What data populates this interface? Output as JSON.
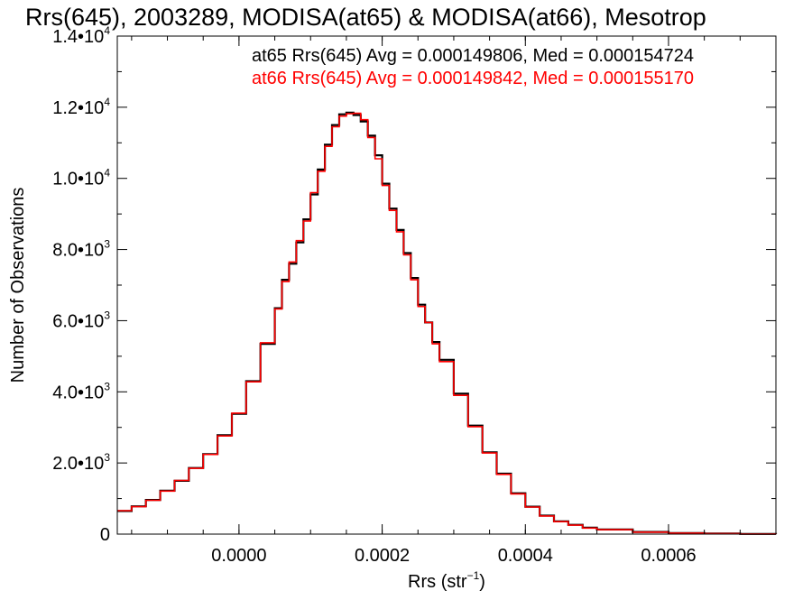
{
  "chart_data": {
    "type": "line",
    "title": "Rrs(645), 2003289, MODISA(at65) & MODISA(at66), Mesotrop",
    "xlabel": "Rrs (str",
    "xlabel_sup": "−1",
    "xlabel_close": ")",
    "ylabel": "Number of Observations",
    "xlim": [
      -0.00017,
      0.00075
    ],
    "ylim": [
      0,
      14000
    ],
    "x_ticks": [
      {
        "value": 0.0,
        "label": "0.0000"
      },
      {
        "value": 0.0002,
        "label": "0.0002"
      },
      {
        "value": 0.0004,
        "label": "0.0004"
      },
      {
        "value": 0.0006,
        "label": "0.0006"
      }
    ],
    "y_ticks": [
      {
        "value": 0,
        "mant": "0",
        "exp": ""
      },
      {
        "value": 2000,
        "mant": "2.0•10",
        "exp": "3"
      },
      {
        "value": 4000,
        "mant": "4.0•10",
        "exp": "3"
      },
      {
        "value": 6000,
        "mant": "6.0•10",
        "exp": "3"
      },
      {
        "value": 8000,
        "mant": "8.0•10",
        "exp": "3"
      },
      {
        "value": 10000,
        "mant": "1.0•10",
        "exp": "4"
      },
      {
        "value": 12000,
        "mant": "1.2•10",
        "exp": "4"
      },
      {
        "value": 14000,
        "mant": "1.4•10",
        "exp": "4"
      }
    ],
    "annotations": [
      {
        "text": "at65 Rrs(645) Avg = 0.000149806, Med = 0.000154724",
        "color": "#000000"
      },
      {
        "text": "at66 Rrs(645) Avg = 0.000149842, Med = 0.000155170",
        "color": "#ff0000"
      }
    ],
    "grid": false,
    "legend": "top-right",
    "series": [
      {
        "color": "#000000",
        "x": [
          -0.00017,
          -0.00015,
          -0.00013,
          -0.00011,
          -9e-05,
          -7e-05,
          -5e-05,
          -3e-05,
          -1e-05,
          1e-05,
          3e-05,
          5e-05,
          6e-05,
          7e-05,
          8e-05,
          9e-05,
          0.0001,
          0.00011,
          0.00012,
          0.00013,
          0.00014,
          0.00015,
          0.00016,
          0.00017,
          0.00018,
          0.00019,
          0.0002,
          0.00021,
          0.00022,
          0.00023,
          0.00024,
          0.00025,
          0.00026,
          0.00027,
          0.00028,
          0.0003,
          0.00032,
          0.00034,
          0.00036,
          0.00038,
          0.0004,
          0.00042,
          0.00044,
          0.00046,
          0.00048,
          0.0005,
          0.00055,
          0.0006,
          0.00065,
          0.0007,
          0.00075
        ],
        "y": [
          650,
          780,
          960,
          1220,
          1500,
          1860,
          2250,
          2780,
          3380,
          4300,
          5350,
          6350,
          7150,
          7600,
          8200,
          8850,
          9550,
          10250,
          10950,
          11500,
          11800,
          11850,
          11780,
          11600,
          11200,
          10650,
          9850,
          9150,
          8550,
          7900,
          7200,
          6450,
          5950,
          5400,
          4900,
          3950,
          3050,
          2300,
          1700,
          1150,
          770,
          520,
          360,
          260,
          180,
          130,
          60,
          30,
          15,
          6,
          2
        ]
      },
      {
        "color": "#ff0000",
        "x": [
          -0.00017,
          -0.00015,
          -0.00013,
          -0.00011,
          -9e-05,
          -7e-05,
          -5e-05,
          -3e-05,
          -1e-05,
          1e-05,
          3e-05,
          5e-05,
          6e-05,
          7e-05,
          8e-05,
          9e-05,
          0.0001,
          0.00011,
          0.00012,
          0.00013,
          0.00014,
          0.00015,
          0.00016,
          0.00017,
          0.00018,
          0.00019,
          0.0002,
          0.00021,
          0.00022,
          0.00023,
          0.00024,
          0.00025,
          0.00026,
          0.00027,
          0.00028,
          0.0003,
          0.00032,
          0.00034,
          0.00036,
          0.00038,
          0.0004,
          0.00042,
          0.00044,
          0.00046,
          0.00048,
          0.0005,
          0.00055,
          0.0006,
          0.00065,
          0.0007,
          0.00075
        ],
        "y": [
          660,
          770,
          950,
          1210,
          1510,
          1850,
          2240,
          2760,
          3400,
          4280,
          5380,
          6330,
          7100,
          7650,
          8250,
          8800,
          9600,
          10200,
          10900,
          11450,
          11750,
          11820,
          11830,
          11650,
          11150,
          10550,
          9800,
          9100,
          8500,
          7850,
          7150,
          6400,
          5950,
          5350,
          4850,
          3900,
          3020,
          2280,
          1680,
          1130,
          760,
          510,
          350,
          250,
          170,
          125,
          55,
          28,
          14,
          5,
          2
        ]
      }
    ]
  }
}
